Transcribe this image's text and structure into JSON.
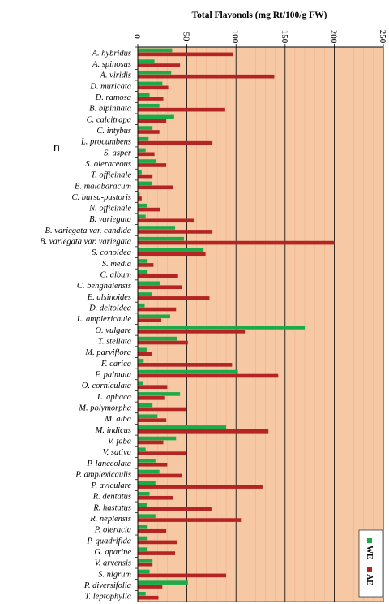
{
  "chart_data": {
    "type": "bar",
    "orientation": "horizontal",
    "title": "Total Flavonols  (mg Rt/100/g  FW)",
    "xlim": [
      0,
      250
    ],
    "xticks": [
      0,
      50,
      100,
      150,
      200,
      250
    ],
    "grid": true,
    "legend_position": "bottom-right",
    "colors": {
      "plot_bg": "#f7c8a4",
      "WE": "#1faa4a",
      "AE": "#b52424",
      "grid": "#000000"
    },
    "stray_text": "n",
    "categories": [
      "A. hybridus",
      "A. spinosus",
      "A. viridis",
      "D. muricata",
      "D. ramosa",
      "B. bipinnata",
      "C. calcitrapa",
      "C. intybus",
      "L. procumbens",
      "S. asper",
      "S. oleraceous",
      "T. officinale",
      "B. malabaracum",
      "C. bursa-pastoris",
      "N. officinale",
      "B. variegata",
      "B. variegata var. candida",
      "B. variegata var. variegata",
      "S. conoidea",
      "S. media",
      "C. album",
      "C. benghalensis",
      "E. alsinoides",
      "D. deltoidea",
      "L. amplexicaule",
      "O. vulgare",
      "T. stellata",
      "M. parviflora",
      "F. carica",
      "F. palmata",
      "O. corniculata",
      "L. aphaca",
      "M. polymorpha",
      "M. alba",
      "M. indicus",
      "V. faba",
      "V. sativa",
      "P. lanceolata",
      "P. amplexicaulis",
      "P. aviculare",
      "R. dentatus",
      "R. hastatus",
      "R. neplensis",
      "P. oleracia",
      "P. quadrifida",
      "G. aparine",
      "V. arvensis",
      "S. nigrum",
      "P. diversifolia",
      "T. leptophylla"
    ],
    "series": [
      {
        "name": "WE",
        "values": [
          35,
          17,
          34,
          25,
          12,
          22,
          37,
          15,
          11,
          8,
          19,
          4,
          14,
          2,
          9,
          8,
          38,
          47,
          67,
          10,
          10,
          23,
          14,
          7,
          33,
          170,
          40,
          9,
          6,
          102,
          5,
          43,
          15,
          20,
          90,
          39,
          8,
          18,
          22,
          18,
          12,
          9,
          18,
          10,
          10,
          10,
          15,
          12,
          51,
          8
        ]
      },
      {
        "name": "AE",
        "values": [
          97,
          43,
          139,
          31,
          26,
          89,
          29,
          22,
          76,
          17,
          29,
          15,
          36,
          4,
          23,
          57,
          76,
          200,
          69,
          16,
          41,
          45,
          73,
          39,
          24,
          109,
          51,
          14,
          96,
          143,
          30,
          27,
          49,
          29,
          133,
          26,
          50,
          30,
          45,
          127,
          36,
          75,
          105,
          29,
          40,
          38,
          15,
          90,
          25,
          21
        ]
      }
    ]
  }
}
